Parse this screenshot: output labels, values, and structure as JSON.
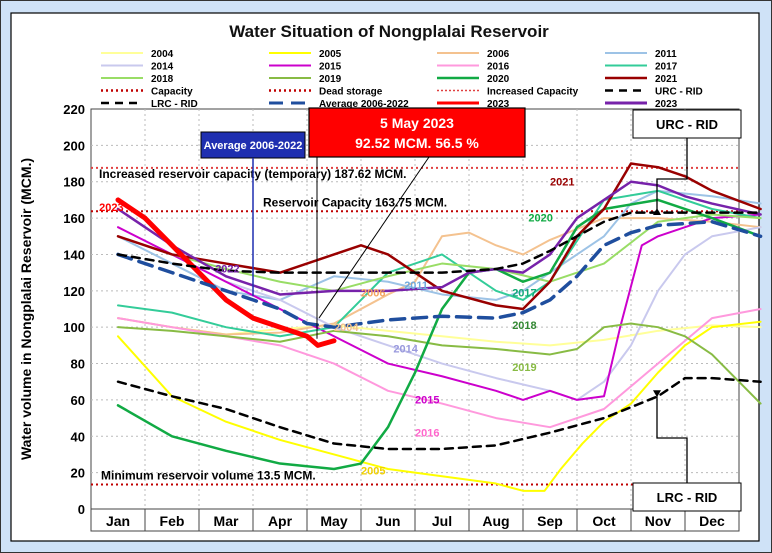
{
  "chart_data": {
    "type": "line",
    "title": "Water Situation of Nongplalai Reservoir",
    "xlabel": "",
    "ylabel": "Water volume in Nongplalai Reservoir (MCM.)",
    "ylim": [
      0,
      220
    ],
    "yticks": [
      0,
      20,
      40,
      60,
      80,
      100,
      120,
      140,
      160,
      180,
      200,
      220
    ],
    "categories": [
      "Jan",
      "Feb",
      "Mar",
      "Apr",
      "May",
      "Jun",
      "Jul",
      "Aug",
      "Sep",
      "Oct",
      "Nov",
      "Dec"
    ],
    "grid": "dotted",
    "legend_position": "top",
    "reference_lines": [
      {
        "name": "Capacity",
        "value": 163.75,
        "label": "Reservoir Capacity 163.75 MCM.",
        "color": "#c00000"
      },
      {
        "name": "Increased Capacity",
        "value": 187.62,
        "label": "Increased reservoir capacity (temporary) 187.62 MCM.",
        "color": "#e04040"
      },
      {
        "name": "Dead storage",
        "value": 13.5,
        "label": "Minimum reservoir volume 13.5 MCM.",
        "color": "#c00000"
      }
    ],
    "callout": {
      "line1": "5 May 2023",
      "line2": "92.52 MCM. 56.5 %"
    },
    "avg_callout": "Average 2006-2022",
    "urc_top_label": "URC - RID",
    "lrc_bottom_label": "LRC - RID",
    "series": [
      {
        "name": "2004",
        "color": "#ffff99",
        "x": [
          0,
          1,
          2,
          3,
          4,
          5,
          6,
          7,
          8,
          9,
          10,
          11,
          11.9
        ],
        "values": [
          105,
          100,
          96,
          99,
          101,
          98,
          95,
          92,
          90,
          93,
          98,
          101,
          100
        ]
      },
      {
        "name": "2005",
        "color": "#ffff00",
        "x": [
          0,
          1,
          2,
          3,
          4,
          5,
          6,
          7,
          7.5,
          7.9,
          8.2,
          8.6,
          9,
          9.5,
          10,
          10.5,
          11,
          11.9
        ],
        "values": [
          95,
          62,
          48,
          38,
          30,
          22,
          18,
          14,
          10,
          10,
          22,
          36,
          48,
          58,
          75,
          90,
          100,
          103
        ]
      },
      {
        "name": "2006",
        "color": "#f4c28f",
        "x": [
          0,
          1,
          2,
          3,
          4,
          5,
          5.5,
          6,
          6.5,
          7,
          7.5,
          8,
          9,
          10,
          11,
          11.9
        ],
        "values": [
          105,
          100,
          96,
          97,
          102,
          118,
          125,
          150,
          152,
          145,
          140,
          148,
          160,
          160,
          158,
          155
        ]
      },
      {
        "name": "2011",
        "color": "#9dc3e6",
        "x": [
          0,
          1,
          2,
          3,
          4,
          5,
          6,
          7,
          7.5,
          8,
          9,
          9.5,
          10,
          11,
          11.9
        ],
        "values": [
          150,
          135,
          120,
          115,
          128,
          125,
          118,
          115,
          120,
          130,
          150,
          168,
          175,
          172,
          168
        ]
      },
      {
        "name": "2014",
        "color": "#c9c9ee",
        "x": [
          0,
          1,
          2,
          3,
          4,
          5,
          6,
          7,
          8,
          8.5,
          9,
          9.5,
          10,
          10.5,
          11,
          11.9
        ],
        "values": [
          150,
          140,
          125,
          115,
          100,
          90,
          80,
          72,
          65,
          60,
          70,
          90,
          120,
          140,
          150,
          155
        ]
      },
      {
        "name": "2015",
        "color": "#cc00cc",
        "x": [
          0,
          1,
          2,
          3,
          4,
          5,
          6,
          7,
          7.5,
          8,
          8.5,
          9,
          9.3,
          9.7,
          10,
          11,
          11.9
        ],
        "values": [
          155,
          140,
          125,
          110,
          95,
          80,
          73,
          65,
          60,
          65,
          60,
          62,
          100,
          145,
          150,
          160,
          162
        ]
      },
      {
        "name": "2016",
        "color": "#ff99dd",
        "x": [
          0,
          1,
          2,
          3,
          4,
          5,
          6,
          7,
          8,
          9,
          10,
          11,
          11.9
        ],
        "values": [
          105,
          100,
          95,
          90,
          80,
          65,
          58,
          50,
          45,
          55,
          80,
          105,
          110
        ]
      },
      {
        "name": "2017",
        "color": "#33cc99",
        "x": [
          0,
          1,
          2,
          3,
          4,
          4.5,
          5,
          6,
          7,
          7.5,
          8,
          9,
          10,
          11,
          11.9
        ],
        "values": [
          112,
          108,
          100,
          95,
          100,
          115,
          130,
          140,
          120,
          115,
          125,
          170,
          175,
          165,
          160
        ]
      },
      {
        "name": "2018",
        "color": "#99dd66",
        "x": [
          0,
          1,
          2,
          3,
          4,
          5,
          6,
          7,
          8,
          9,
          10,
          11,
          11.9
        ],
        "values": [
          150,
          140,
          132,
          125,
          120,
          128,
          135,
          132,
          125,
          135,
          158,
          162,
          160
        ]
      },
      {
        "name": "2019",
        "color": "#88bb44",
        "x": [
          0,
          1,
          2,
          3,
          4,
          5,
          6,
          7,
          8,
          8.5,
          9,
          9.5,
          10,
          10.5,
          11,
          11.5,
          11.9
        ],
        "values": [
          100,
          98,
          95,
          92,
          98,
          95,
          90,
          88,
          85,
          88,
          100,
          102,
          100,
          95,
          85,
          70,
          58
        ]
      },
      {
        "name": "2020",
        "color": "#11aa44",
        "x": [
          0,
          1,
          2,
          3,
          4,
          4.5,
          5,
          5.5,
          6,
          6.5,
          7,
          7.5,
          8,
          8.5,
          9,
          10,
          11,
          11.9
        ],
        "values": [
          57,
          40,
          32,
          25,
          22,
          25,
          45,
          75,
          110,
          130,
          132,
          125,
          130,
          155,
          165,
          170,
          160,
          150
        ]
      },
      {
        "name": "2021",
        "color": "#990000",
        "x": [
          0,
          1,
          2,
          3,
          4,
          4.5,
          5,
          6,
          7,
          7.5,
          8,
          8.5,
          9,
          9.5,
          10,
          10.5,
          11,
          11.9
        ],
        "values": [
          150,
          140,
          135,
          130,
          140,
          145,
          140,
          120,
          112,
          110,
          125,
          150,
          165,
          190,
          188,
          183,
          175,
          165
        ]
      },
      {
        "name": "2022",
        "color": "#7722aa",
        "x": [
          0,
          1,
          2,
          3,
          4,
          5,
          6,
          6.5,
          7,
          7.5,
          8,
          8.5,
          9,
          9.5,
          10,
          10.5,
          11,
          11.9
        ],
        "values": [
          165,
          145,
          128,
          118,
          120,
          120,
          122,
          130,
          132,
          130,
          140,
          160,
          170,
          180,
          178,
          172,
          168,
          162
        ]
      },
      {
        "name": "2023",
        "color": "#ff0000",
        "x": [
          0,
          0.5,
          1,
          1.5,
          2,
          2.5,
          3,
          3.5,
          3.7,
          4.0
        ],
        "values": [
          170,
          160,
          145,
          130,
          115,
          105,
          100,
          95,
          90,
          92.52
        ]
      },
      {
        "name": "Average 2006-2022",
        "color": "#1f4e9e",
        "x": [
          0,
          1,
          2,
          3,
          3.5,
          4,
          4.5,
          5,
          6,
          7,
          7.5,
          8,
          8.5,
          9,
          9.5,
          10,
          11,
          11.9
        ],
        "values": [
          140,
          130,
          120,
          110,
          102,
          100,
          102,
          104,
          106,
          105,
          108,
          115,
          128,
          145,
          152,
          156,
          158,
          150
        ]
      },
      {
        "name": "URC - RID",
        "color": "#000000",
        "x": [
          0,
          1,
          2,
          3,
          4,
          5,
          6,
          7,
          7.5,
          8,
          8.5,
          9,
          9.5,
          10,
          11,
          11.9
        ],
        "values": [
          140,
          135,
          131,
          130,
          130,
          130,
          130,
          132,
          135,
          142,
          150,
          158,
          163,
          163,
          163,
          163
        ]
      },
      {
        "name": "LRC - RID",
        "color": "#000000",
        "x": [
          0,
          1,
          2,
          3,
          4,
          5,
          6,
          7,
          8,
          9,
          10,
          10.5,
          11,
          11.9
        ],
        "values": [
          70,
          62,
          55,
          45,
          36,
          33,
          33,
          35,
          42,
          50,
          62,
          72,
          72,
          70
        ]
      }
    ],
    "legend_rows": [
      [
        "2004",
        "2005",
        "2006",
        "2011"
      ],
      [
        "2014",
        "2015",
        "2016",
        "2017"
      ],
      [
        "2018",
        "2019",
        "2020",
        "2021"
      ],
      [
        "Capacity",
        "Dead storage",
        "Increased Capacity",
        "URC - RID"
      ],
      [
        "LRC - RID",
        "Average 2006-2022",
        "2023",
        "2023"
      ]
    ],
    "inline_labels": [
      {
        "text": "2023",
        "x": 0.15,
        "y": 164,
        "color": "#ff0000"
      },
      {
        "text": "2022",
        "x": 2.3,
        "y": 130,
        "color": "#7722aa"
      },
      {
        "text": "2006",
        "x": 5.0,
        "y": 117,
        "color": "#f4a460"
      },
      {
        "text": "2011",
        "x": 5.8,
        "y": 121,
        "color": "#6fa8dc"
      },
      {
        "text": "2004",
        "x": 4.5,
        "y": 98,
        "color": "#f4c28f"
      },
      {
        "text": "2014",
        "x": 5.6,
        "y": 86,
        "color": "#9999dd"
      },
      {
        "text": "2015",
        "x": 6.0,
        "y": 58,
        "color": "#cc00cc"
      },
      {
        "text": "2016",
        "x": 6.0,
        "y": 40,
        "color": "#ff66cc"
      },
      {
        "text": "2005",
        "x": 5.0,
        "y": 19,
        "color": "#f0d000"
      },
      {
        "text": "2021",
        "x": 8.5,
        "y": 178,
        "color": "#990000"
      },
      {
        "text": "2020",
        "x": 8.1,
        "y": 158,
        "color": "#11aa44"
      },
      {
        "text": "2017",
        "x": 7.8,
        "y": 117,
        "color": "#11aa77"
      },
      {
        "text": "2018",
        "x": 7.8,
        "y": 99,
        "color": "#338833"
      },
      {
        "text": "2019",
        "x": 7.8,
        "y": 76,
        "color": "#88bb44"
      }
    ]
  }
}
